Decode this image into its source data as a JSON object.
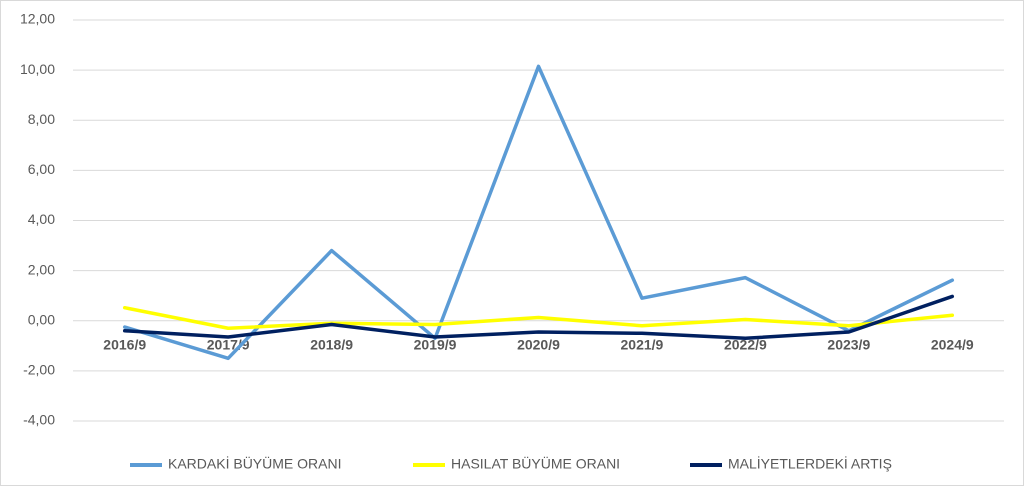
{
  "chart_data": {
    "type": "line",
    "categories": [
      "2016/9",
      "2017/9",
      "2018/9",
      "2019/9",
      "2020/9",
      "2021/9",
      "2022/9",
      "2023/9",
      "2024/9"
    ],
    "series": [
      {
        "name": "KARDAKİ BÜYÜME ORANI",
        "color": "#5b9bd5",
        "values": [
          -0.25,
          -1.5,
          2.8,
          -0.7,
          10.15,
          0.9,
          1.72,
          -0.4,
          1.62
        ]
      },
      {
        "name": "HASILAT BÜYÜME ORANI",
        "color": "#ffff00",
        "values": [
          0.52,
          -0.3,
          -0.1,
          -0.15,
          0.13,
          -0.2,
          0.05,
          -0.2,
          0.22
        ]
      },
      {
        "name": "MALİYETLERDEKİ ARTIŞ",
        "color": "#002060",
        "values": [
          -0.4,
          -0.65,
          -0.15,
          -0.65,
          -0.45,
          -0.5,
          -0.7,
          -0.45,
          0.97
        ]
      }
    ],
    "ylim": [
      -4,
      12
    ],
    "yticks": [
      {
        "value": -4,
        "label": "-4,00"
      },
      {
        "value": -2,
        "label": "-2,00"
      },
      {
        "value": 0,
        "label": "0,00"
      },
      {
        "value": 2,
        "label": "2,00"
      },
      {
        "value": 4,
        "label": "4,00"
      },
      {
        "value": 6,
        "label": "6,00"
      },
      {
        "value": 8,
        "label": "8,00"
      },
      {
        "value": 10,
        "label": "10,00"
      },
      {
        "value": 12,
        "label": "12,00"
      }
    ],
    "grid": true
  }
}
